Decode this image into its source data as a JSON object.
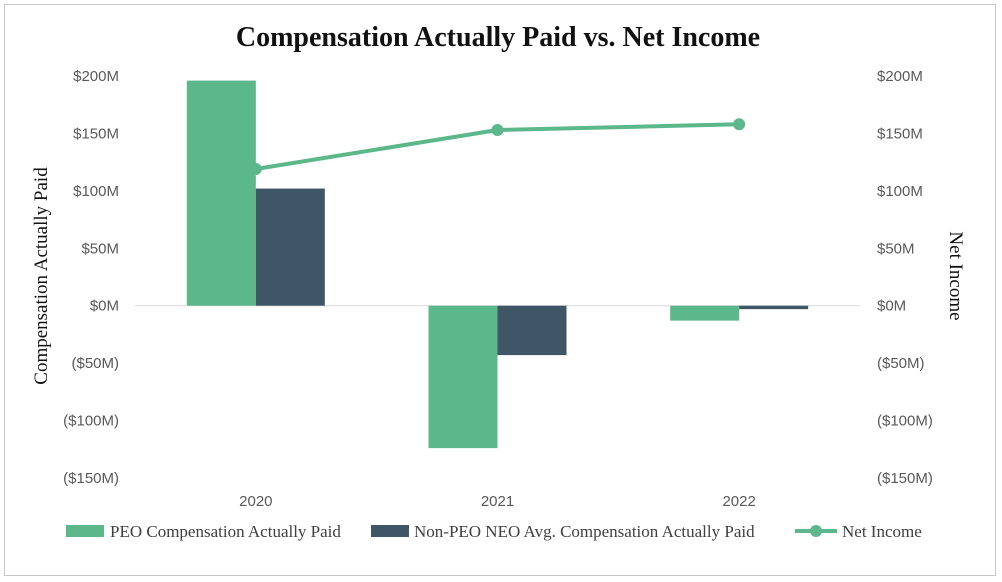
{
  "chart_data": {
    "type": "bar",
    "title": "Compensation Actually Paid vs. Net Income",
    "categories": [
      "2020",
      "2021",
      "2022"
    ],
    "y_left_label": "Compensation Actually Paid",
    "y_right_label": "Net Income",
    "ylim": [
      -150,
      200
    ],
    "y_ticks": [
      200,
      150,
      100,
      50,
      0,
      -50,
      -100,
      -150
    ],
    "y_tick_labels": [
      "$200M",
      "$150M",
      "$100M",
      "$50M",
      "$0M",
      "($50M)",
      "($100M)",
      "($150M)"
    ],
    "series": [
      {
        "name": "PEO Compensation Actually Paid",
        "kind": "bar",
        "color": "#5cb88a",
        "values": [
          196,
          -124,
          -13
        ]
      },
      {
        "name": "Non-PEO NEO Avg. Compensation Actually Paid",
        "kind": "bar",
        "color": "#3f5666",
        "values": [
          102,
          -43,
          -3
        ]
      },
      {
        "name": "Net Income",
        "kind": "line",
        "color": "#5cb88a",
        "values": [
          119,
          153,
          158
        ]
      }
    ],
    "grid": false,
    "legend_position": "bottom"
  }
}
